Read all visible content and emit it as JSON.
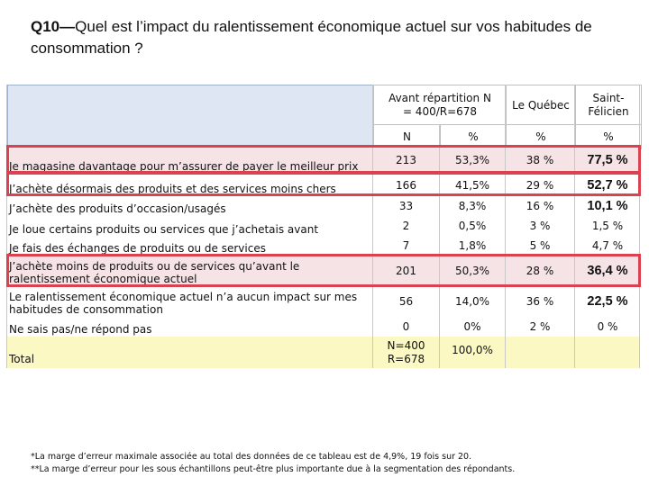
{
  "title": {
    "prefix": "Q10—",
    "text": "Quel est l’impact du ralentissement économique actuel sur vos habitudes de consommation ?"
  },
  "columns": {
    "avant": "Avant répartition N = 400/R=678",
    "quebec": "Le Québec",
    "saint": "Saint-Félicien",
    "sub": [
      "N",
      "%",
      "%",
      "%"
    ]
  },
  "rows": [
    {
      "label": "Je magasine davantage pour m’assurer de payer le meilleur prix",
      "n": "213",
      "pct": "53,3%",
      "quebec": "38 %",
      "saint": "77,5 %"
    },
    {
      "label": "J’achète désormais des produits et des services moins chers",
      "n": "166",
      "pct": "41,5%",
      "quebec": "29 %",
      "saint": "52,7 %"
    },
    {
      "label": "J’achète des produits d’occasion/usagés",
      "n": "33",
      "pct": "8,3%",
      "quebec": "16 %",
      "saint": "10,1 %"
    },
    {
      "label": "Je loue certains produits ou services que j’achetais avant",
      "n": "2",
      "pct": "0,5%",
      "quebec": "3 %",
      "saint": "1,5 %"
    },
    {
      "label": "Je fais des échanges de produits ou de services",
      "n": "7",
      "pct": "1,8%",
      "quebec": "5 %",
      "saint": "4,7 %"
    },
    {
      "label": "J’achète moins de produits ou de services qu’avant le ralentissement économique actuel",
      "n": "201",
      "pct": "50,3%",
      "quebec": "28 %",
      "saint": "36,4 %"
    },
    {
      "label": "Le ralentissement économique actuel n’a aucun impact sur mes habitudes de consommation",
      "n": "56",
      "pct": "14,0%",
      "quebec": "36 %",
      "saint": "22,5 %"
    },
    {
      "label": "Ne sais pas/ne répond pas",
      "n": "0",
      "pct": "0%",
      "quebec": "2 %",
      "saint": "0 %"
    }
  ],
  "total": {
    "label": "Total",
    "n": "N=400 R=678",
    "pct": "100,0%"
  },
  "notes": [
    "*La marge d’erreur maximale associée au total des données de ce tableau est de 4,9%, 19 fois sur 20.",
    "**La marge d’erreur pour les sous échantillons peut-être plus importante due à la segmentation des répondants."
  ]
}
